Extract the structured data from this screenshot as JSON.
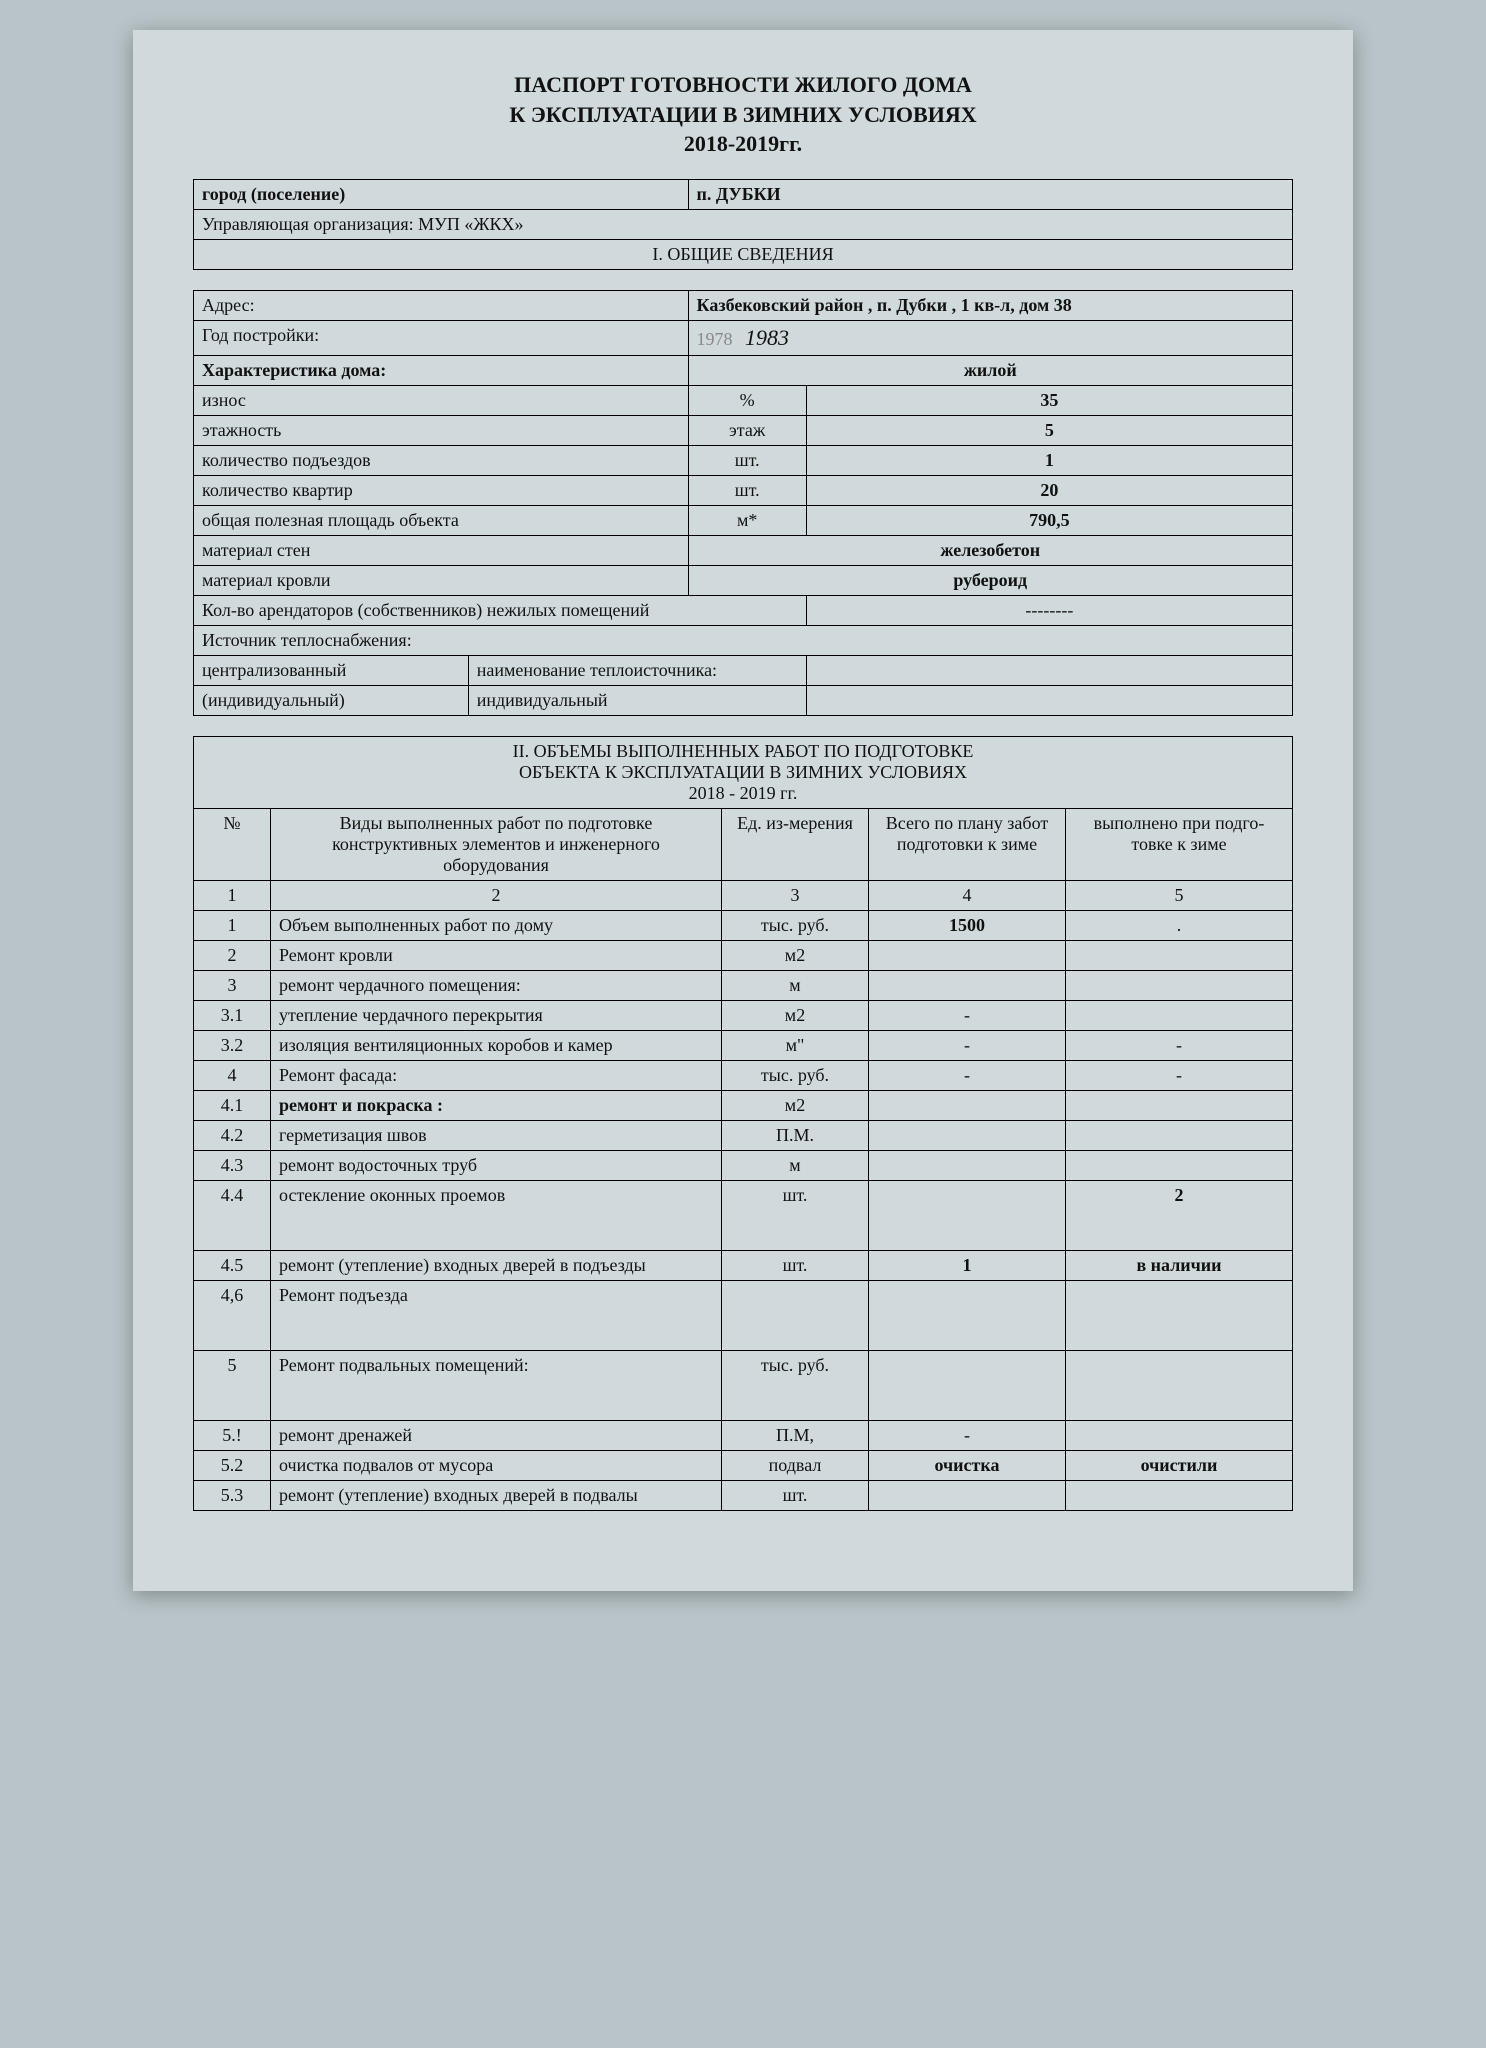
{
  "title_lines": {
    "l1": "ПАСПОРТ ГОТОВНОСТИ ЖИЛОГО ДОМА",
    "l2": "К ЭКСПЛУАТАЦИИ В ЗИМНИХ УСЛОВИЯХ",
    "l3": "2018-2019гг."
  },
  "header": {
    "city_label": "город (поселение)",
    "city_value": "п. ДУБКИ",
    "org_label": "Управляющая организация: МУП «ЖКХ»",
    "section1": "I. ОБЩИЕ СВЕДЕНИЯ"
  },
  "general": {
    "addr_label": "Адрес:",
    "addr_value": "Казбековский район , п. Дубки , 1 кв-л, дом 38",
    "year_label": "Год постройки:",
    "year_print": "1978",
    "year_hand": "1983",
    "char_label": "Характеристика дома:",
    "char_value": "жилой",
    "rows": [
      {
        "label": "износ",
        "unit": "%",
        "value": "35"
      },
      {
        "label": "этажность",
        "unit": "этаж",
        "value": "5"
      },
      {
        "label": "количество подъездов",
        "unit": "шт.",
        "value": "1"
      },
      {
        "label": "количество квартир",
        "unit": "шт.",
        "value": "20"
      },
      {
        "label": "общая полезная площадь объекта",
        "unit": "м*",
        "value": "790,5"
      },
      {
        "label": "материал стен",
        "unit": "",
        "value": "железобетон"
      },
      {
        "label": "материал кровли",
        "unit": "",
        "value": "рубероид"
      }
    ],
    "tenants_label": "Кол-во арендаторов (собственников) нежилых помещений",
    "tenants_value": "--------",
    "heat_source_label": "Источник теплоснабжения:",
    "heat_central_label": "централизованный",
    "heat_central_name_label": "наименование теплоисточника:",
    "heat_central_name_value": "",
    "heat_indiv_label": "(индивидуальный)",
    "heat_indiv_value": "индивидуальный"
  },
  "section2": {
    "h1": "II. ОБЪЕМЫ ВЫПОЛНЕННЫХ РАБОТ ПО ПОДГОТОВКЕ",
    "h2": "ОБЪЕКТА К ЭКСПЛУАТАЦИИ В ЗИМНИХ УСЛОВИЯХ",
    "h3": "2018 - 2019 гг.",
    "col_num": "№",
    "col_work": "Виды выполненных работ по подготовке конструктивных элементов и инженерного оборудования",
    "col_unit": "Ед. из-мерения",
    "col_plan": "Всего по плану забот подготовки к зиме",
    "col_done": "выполнено при подго-товке к зиме",
    "hdr_nums": {
      "c1": "1",
      "c2": "2",
      "c3": "3",
      "c4": "4",
      "c5": "5"
    },
    "rows": [
      {
        "n": "1",
        "work": "Объем выполненных работ по дому",
        "unit": "тыс. руб.",
        "plan": "1500",
        "done": ".",
        "bold_plan": true
      },
      {
        "n": "2",
        "work": "Ремонт кровли",
        "unit": "м2",
        "plan": "",
        "done": ""
      },
      {
        "n": "3",
        "work": "ремонт чердачного помещения:",
        "unit": "м",
        "plan": "",
        "done": ""
      },
      {
        "n": "3.1",
        "work": "утепление чердачного перекрытия",
        "unit": "м2",
        "plan": "-",
        "done": ""
      },
      {
        "n": "3.2",
        "work": "изоляция вентиляционных коробов и камер",
        "unit": "м\"",
        "plan": "-",
        "done": "-"
      },
      {
        "n": "4",
        "work": "Ремонт фасада:",
        "unit": "тыс. руб.",
        "plan": "-",
        "done": "-"
      },
      {
        "n": "4.1",
        "work": "ремонт и покраска :",
        "unit": "м2",
        "plan": "",
        "done": "",
        "bold_work": true
      },
      {
        "n": "4.2",
        "work": "герметизация швов",
        "unit": "П.М.",
        "plan": "",
        "done": ""
      },
      {
        "n": "4.3",
        "work": "ремонт водосточных труб",
        "unit": "м",
        "plan": "",
        "done": ""
      },
      {
        "n": "4.4",
        "work": "остекление оконных проемов",
        "unit": "шт.",
        "plan": "",
        "done": "2",
        "bold_done": true,
        "tall": true
      },
      {
        "n": "4.5",
        "work": "ремонт (утепление) входных дверей в подъезды",
        "unit": "шт.",
        "plan": "1",
        "done": "в наличии",
        "bold_plan": true,
        "bold_done": true
      },
      {
        "n": "4,6",
        "work": "Ремонт подъезда",
        "unit": "",
        "plan": "",
        "done": "",
        "tall": true
      },
      {
        "n": "5",
        "work": "Ремонт подвальных помещений:",
        "unit": "тыс. руб.",
        "plan": "",
        "done": "",
        "tall": true
      },
      {
        "n": "5.!",
        "work": "ремонт дренажей",
        "unit": "П.М,",
        "plan": "-",
        "done": ""
      },
      {
        "n": "5.2",
        "work": "очистка подвалов от мусора",
        "unit": "подвал",
        "plan": "очистка",
        "done": "очистили",
        "bold_plan": true,
        "bold_done": true
      },
      {
        "n": "5.3",
        "work": "ремонт (утепление) входных дверей в подвалы",
        "unit": "шт.",
        "plan": "",
        "done": ""
      }
    ]
  }
}
